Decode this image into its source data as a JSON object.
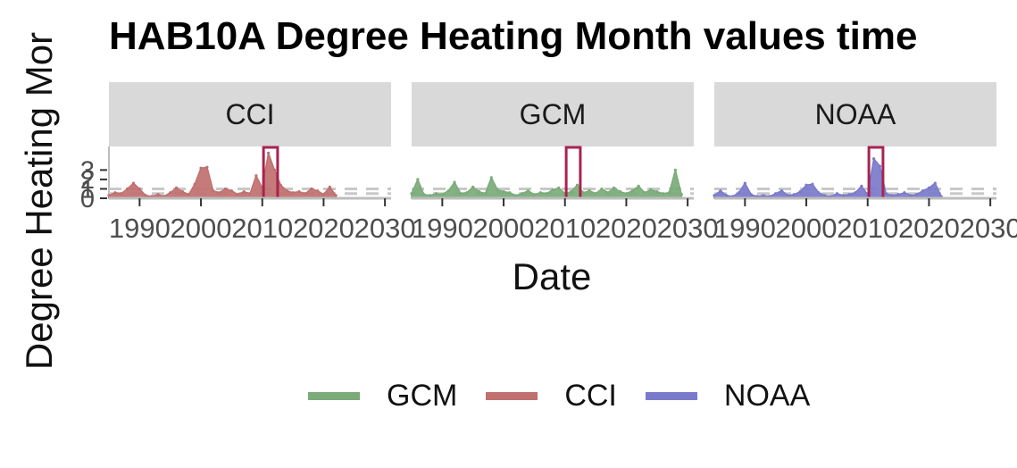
{
  "chart_data": {
    "type": "area",
    "title": "HAB10A Degree Heating Month values time",
    "xlabel": "Date",
    "ylabel": "Degree Heating Mor",
    "xlim": [
      1985,
      2031
    ],
    "ylim": [
      0,
      5.5
    ],
    "x_ticks": [
      "1990",
      "2000",
      "2010",
      "2020",
      "2030"
    ],
    "y_ticks": [
      "0",
      "1",
      "2",
      "3"
    ],
    "highlight_x_range": [
      2010.2,
      2012.5
    ],
    "highlight_color": "#a8234f",
    "panels": [
      {
        "name": "CCI",
        "color": "#c0706f",
        "x": [
          1985,
          1986,
          1987,
          1988,
          1989,
          1990,
          1991,
          1992,
          1993,
          1994,
          1995,
          1996,
          1997,
          1998,
          1999,
          2000,
          2001,
          2002,
          2003,
          2004,
          2005,
          2006,
          2007,
          2008,
          2009,
          2010,
          2011,
          2012,
          2013,
          2014,
          2015,
          2016,
          2017,
          2018,
          2019,
          2020,
          2021,
          2022
        ],
        "values": [
          0.3,
          0.6,
          0.5,
          1.0,
          1.6,
          1.0,
          0.3,
          0.2,
          0.4,
          0.2,
          0.6,
          1.1,
          0.7,
          0.4,
          1.5,
          3.2,
          3.3,
          0.8,
          0.6,
          1.0,
          0.8,
          0.4,
          0.7,
          0.5,
          2.4,
          1.1,
          4.8,
          3.0,
          1.4,
          0.8,
          0.6,
          0.7,
          0.5,
          1.0,
          0.8,
          0.4,
          1.2,
          0.3
        ]
      },
      {
        "name": "GCM",
        "color": "#7aab78",
        "x": [
          1985,
          1986,
          1987,
          1988,
          1989,
          1990,
          1991,
          1992,
          1993,
          1994,
          1995,
          1996,
          1997,
          1998,
          1999,
          2000,
          2001,
          2002,
          2003,
          2004,
          2005,
          2006,
          2007,
          2008,
          2009,
          2010,
          2011,
          2012,
          2013,
          2014,
          2015,
          2016,
          2017,
          2018,
          2019,
          2020,
          2021,
          2022,
          2023,
          2024,
          2025,
          2026,
          2027,
          2028,
          2029
        ],
        "values": [
          0.5,
          2.0,
          0.4,
          0.3,
          0.5,
          0.4,
          0.8,
          1.7,
          0.5,
          0.6,
          1.2,
          0.7,
          0.5,
          2.2,
          0.9,
          0.7,
          0.6,
          0.3,
          0.5,
          0.8,
          0.4,
          0.6,
          0.5,
          0.9,
          1.1,
          0.5,
          0.7,
          1.4,
          0.6,
          0.8,
          0.5,
          1.0,
          0.6,
          1.1,
          0.7,
          0.5,
          0.8,
          1.3,
          0.6,
          0.9,
          0.7,
          0.5,
          0.6,
          3.0,
          0.4
        ]
      },
      {
        "name": "NOAA",
        "color": "#7a7acb",
        "x": [
          1985,
          1986,
          1987,
          1988,
          1989,
          1990,
          1991,
          1992,
          1993,
          1994,
          1995,
          1996,
          1997,
          1998,
          1999,
          2000,
          2001,
          2002,
          2003,
          2004,
          2005,
          2006,
          2007,
          2008,
          2009,
          2010,
          2011,
          2012,
          2013,
          2014,
          2015,
          2016,
          2017,
          2018,
          2019,
          2020,
          2021,
          2022
        ],
        "values": [
          0.3,
          0.8,
          0.3,
          0.2,
          0.6,
          1.6,
          0.4,
          0.2,
          0.3,
          0.2,
          0.5,
          0.8,
          0.3,
          0.4,
          0.7,
          1.4,
          1.5,
          0.6,
          0.3,
          0.2,
          0.5,
          0.3,
          0.4,
          0.6,
          1.3,
          0.4,
          4.2,
          3.4,
          0.5,
          0.3,
          0.4,
          0.6,
          0.3,
          0.4,
          0.8,
          1.1,
          1.6,
          0.2
        ]
      }
    ],
    "legend": {
      "position": "bottom",
      "entries": [
        {
          "name": "GCM",
          "color": "#7aab78"
        },
        {
          "name": "CCI",
          "color": "#c0706f"
        },
        {
          "name": "NOAA",
          "color": "#7a7acb"
        }
      ]
    },
    "strip_bg": "#d9d9d9",
    "ref_line_color": "#c8c8c8"
  }
}
